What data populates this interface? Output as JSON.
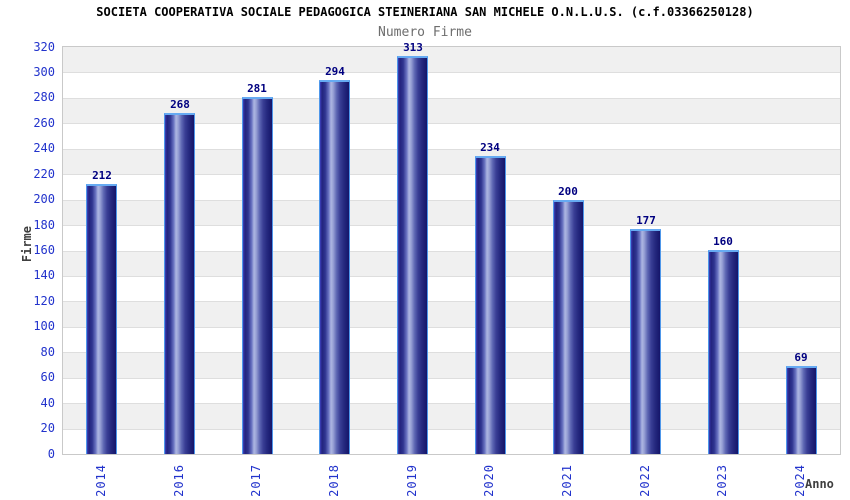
{
  "header": {
    "title": "SOCIETA COOPERATIVA SOCIALE PEDAGOGICA STEINERIANA SAN MICHELE O.N.L.U.S. (c.f.03366250128)",
    "subtitle": "Numero Firme"
  },
  "chart_data": {
    "type": "bar",
    "title": "Numero Firme",
    "categories": [
      "2014",
      "2016",
      "2017",
      "2018",
      "2019",
      "2020",
      "2021",
      "2022",
      "2023",
      "2024"
    ],
    "values": [
      212,
      268,
      281,
      294,
      313,
      234,
      200,
      177,
      160,
      69
    ],
    "value_labels": [
      "212",
      "268",
      "281",
      "294",
      "313",
      "234",
      "200",
      "177",
      "160",
      "69"
    ],
    "xlabel": "Anno",
    "ylabel": "Firme",
    "ylim": [
      0,
      320
    ],
    "ytick_step": 20,
    "yticks": [
      0,
      20,
      40,
      60,
      80,
      100,
      120,
      140,
      160,
      180,
      200,
      220,
      240,
      260,
      280,
      300,
      320
    ],
    "grid": "horizontal-alternating-bands",
    "legend_position": "none",
    "colors": {
      "title_text": "#000000",
      "subtitle_text": "#6e6e6e",
      "axis_tick_text": "#2233cc",
      "value_label_text": "#000080",
      "axis_title_text": "#3f3f3f",
      "plot_border": "#c9c9c9",
      "grid_line": "#dedede",
      "band_gray": "#f0f0f0",
      "band_white": "#ffffff",
      "bar_border": "#4e97ea",
      "bar_cap": "#66aaf2",
      "bar_edge_dark": "#15156a",
      "bar_body": "#23237e",
      "bar_highlight": "#adb6e2"
    }
  }
}
